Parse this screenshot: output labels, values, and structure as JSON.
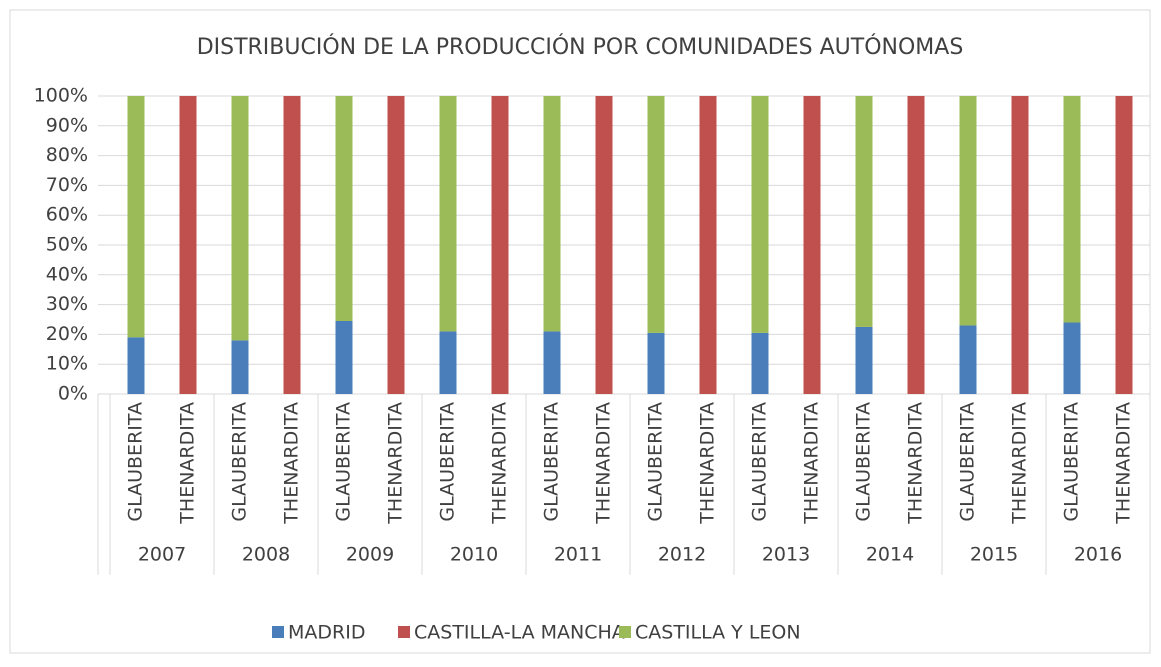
{
  "chart_data": {
    "type": "bar",
    "stacked": true,
    "title": "DISTRIBUCIÓN DE LA PRODUCCIÓN POR COMUNIDADES AUTÓNOMAS",
    "groups": [
      "2007",
      "2008",
      "2009",
      "2010",
      "2011",
      "2012",
      "2013",
      "2014",
      "2015",
      "2016"
    ],
    "categories": [
      "GLAUBERITA",
      "THENARDITA",
      "GLAUBERITA",
      "THENARDITA",
      "GLAUBERITA",
      "THENARDITA",
      "GLAUBERITA",
      "THENARDITA",
      "GLAUBERITA",
      "THENARDITA",
      "GLAUBERITA",
      "THENARDITA",
      "GLAUBERITA",
      "THENARDITA",
      "GLAUBERITA",
      "THENARDITA",
      "GLAUBERITA",
      "THENARDITA",
      "GLAUBERITA",
      "THENARDITA"
    ],
    "series": [
      {
        "name": "MADRID",
        "color": "#4a7ebb",
        "values": [
          19,
          0,
          18,
          0,
          24.5,
          0,
          21,
          0,
          21,
          0,
          20.5,
          0,
          20.5,
          0,
          22.5,
          0,
          23,
          0,
          24,
          0
        ]
      },
      {
        "name": "CASTILLA-LA MANCHA",
        "color": "#c0504d",
        "values": [
          0,
          100,
          0,
          100,
          0,
          100,
          0,
          100,
          0,
          100,
          0,
          100,
          0,
          100,
          0,
          100,
          0,
          100,
          0,
          100
        ]
      },
      {
        "name": "CASTILLA Y LEON",
        "color": "#9bbb59",
        "values": [
          81,
          0,
          82,
          0,
          75.5,
          0,
          79,
          0,
          79,
          0,
          79.5,
          0,
          79.5,
          0,
          77.5,
          0,
          77,
          0,
          76,
          0
        ]
      }
    ],
    "ylim": [
      0,
      100
    ],
    "yticks": [
      {
        "value": 0,
        "label": "0%"
      },
      {
        "value": 10,
        "label": "10%"
      },
      {
        "value": 20,
        "label": "20%"
      },
      {
        "value": 30,
        "label": "30%"
      },
      {
        "value": 40,
        "label": "40%"
      },
      {
        "value": 50,
        "label": "50%"
      },
      {
        "value": 60,
        "label": "60%"
      },
      {
        "value": 70,
        "label": "70%"
      },
      {
        "value": 80,
        "label": "80%"
      },
      {
        "value": 90,
        "label": "90%"
      },
      {
        "value": 100,
        "label": "100%"
      }
    ],
    "grid": true,
    "legend": "bottom"
  }
}
